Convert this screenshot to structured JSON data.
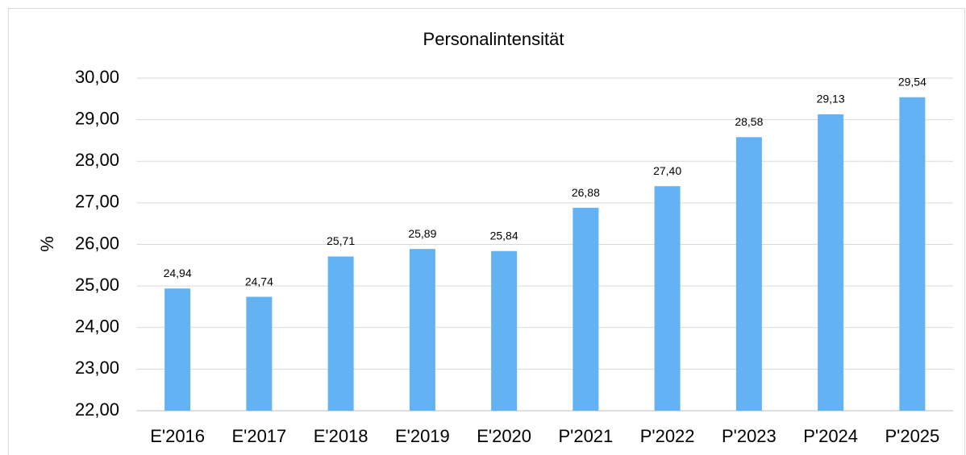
{
  "chart_data": {
    "type": "bar",
    "title": "Personalintensität",
    "y_label": "%",
    "categories": [
      "E'2016",
      "E'2017",
      "E'2018",
      "E'2019",
      "E'2020",
      "P'2021",
      "P'2022",
      "P'2023",
      "P'2024",
      "P'2025"
    ],
    "values": [
      24.94,
      24.74,
      25.71,
      25.89,
      25.84,
      26.88,
      27.4,
      28.58,
      29.13,
      29.54
    ],
    "value_labels": [
      "24,94",
      "24,74",
      "25,71",
      "25,89",
      "25,84",
      "26,88",
      "27,40",
      "28,58",
      "29,13",
      "29,54"
    ],
    "color": "#62b2f4",
    "ylim": [
      22,
      30
    ],
    "yticks": [
      {
        "value": 22,
        "label": "22,00"
      },
      {
        "value": 23,
        "label": "23,00"
      },
      {
        "value": 24,
        "label": "24,00"
      },
      {
        "value": 25,
        "label": "25,00"
      },
      {
        "value": 26,
        "label": "26,00"
      },
      {
        "value": 27,
        "label": "27,00"
      },
      {
        "value": 28,
        "label": "28,00"
      },
      {
        "value": 29,
        "label": "29,00"
      },
      {
        "value": 30,
        "label": "30,00"
      }
    ],
    "grid": true
  }
}
